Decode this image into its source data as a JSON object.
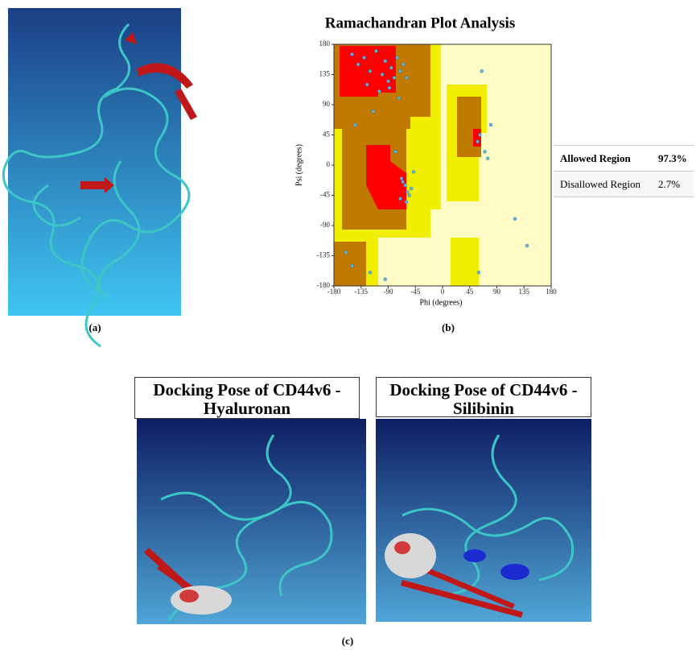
{
  "panel_a": {
    "label": "(a)"
  },
  "panel_b": {
    "title": "Ramachandran Plot Analysis",
    "x_label": "Phi (degrees)",
    "y_label": "Psi (degrees)",
    "xlim": [
      -180,
      180
    ],
    "ylim": [
      -180,
      180
    ],
    "xticks": [
      -180,
      -135,
      -90,
      -45,
      0,
      45,
      90,
      135,
      180
    ],
    "yticks": [
      -180,
      -135,
      -90,
      -45,
      0,
      45,
      90,
      135,
      180
    ],
    "points": {
      "phi": [
        -150,
        -140,
        -130,
        -120,
        -110,
        -100,
        -95,
        -90,
        -85,
        -80,
        -75,
        -70,
        -65,
        -125,
        -105,
        -88,
        -72,
        -60,
        -145,
        -115,
        -78,
        -68,
        -62,
        -58,
        -55,
        -52,
        -66,
        -70,
        -60,
        -48,
        62,
        58,
        70,
        75,
        80,
        65,
        -160,
        -150,
        -120,
        -95,
        60,
        140,
        120
      ],
      "psi": [
        165,
        150,
        160,
        140,
        170,
        135,
        155,
        125,
        145,
        130,
        160,
        140,
        150,
        120,
        110,
        115,
        100,
        130,
        60,
        80,
        20,
        -20,
        -30,
        -40,
        -45,
        -35,
        -25,
        -50,
        -55,
        -10,
        45,
        35,
        20,
        10,
        60,
        140,
        -130,
        -150,
        -160,
        -170,
        -160,
        -120,
        -80
      ]
    },
    "label": "(b)"
  },
  "table": {
    "rows": [
      [
        "Allowed Region",
        "97.3%"
      ],
      [
        "Disallowed Region",
        "2.7%"
      ]
    ]
  },
  "panel_c": {
    "titles": [
      "Docking Pose of CD44v6 - Hyaluronan",
      "Docking Pose of CD44v6 - Silibinin"
    ],
    "label": "(c)"
  }
}
